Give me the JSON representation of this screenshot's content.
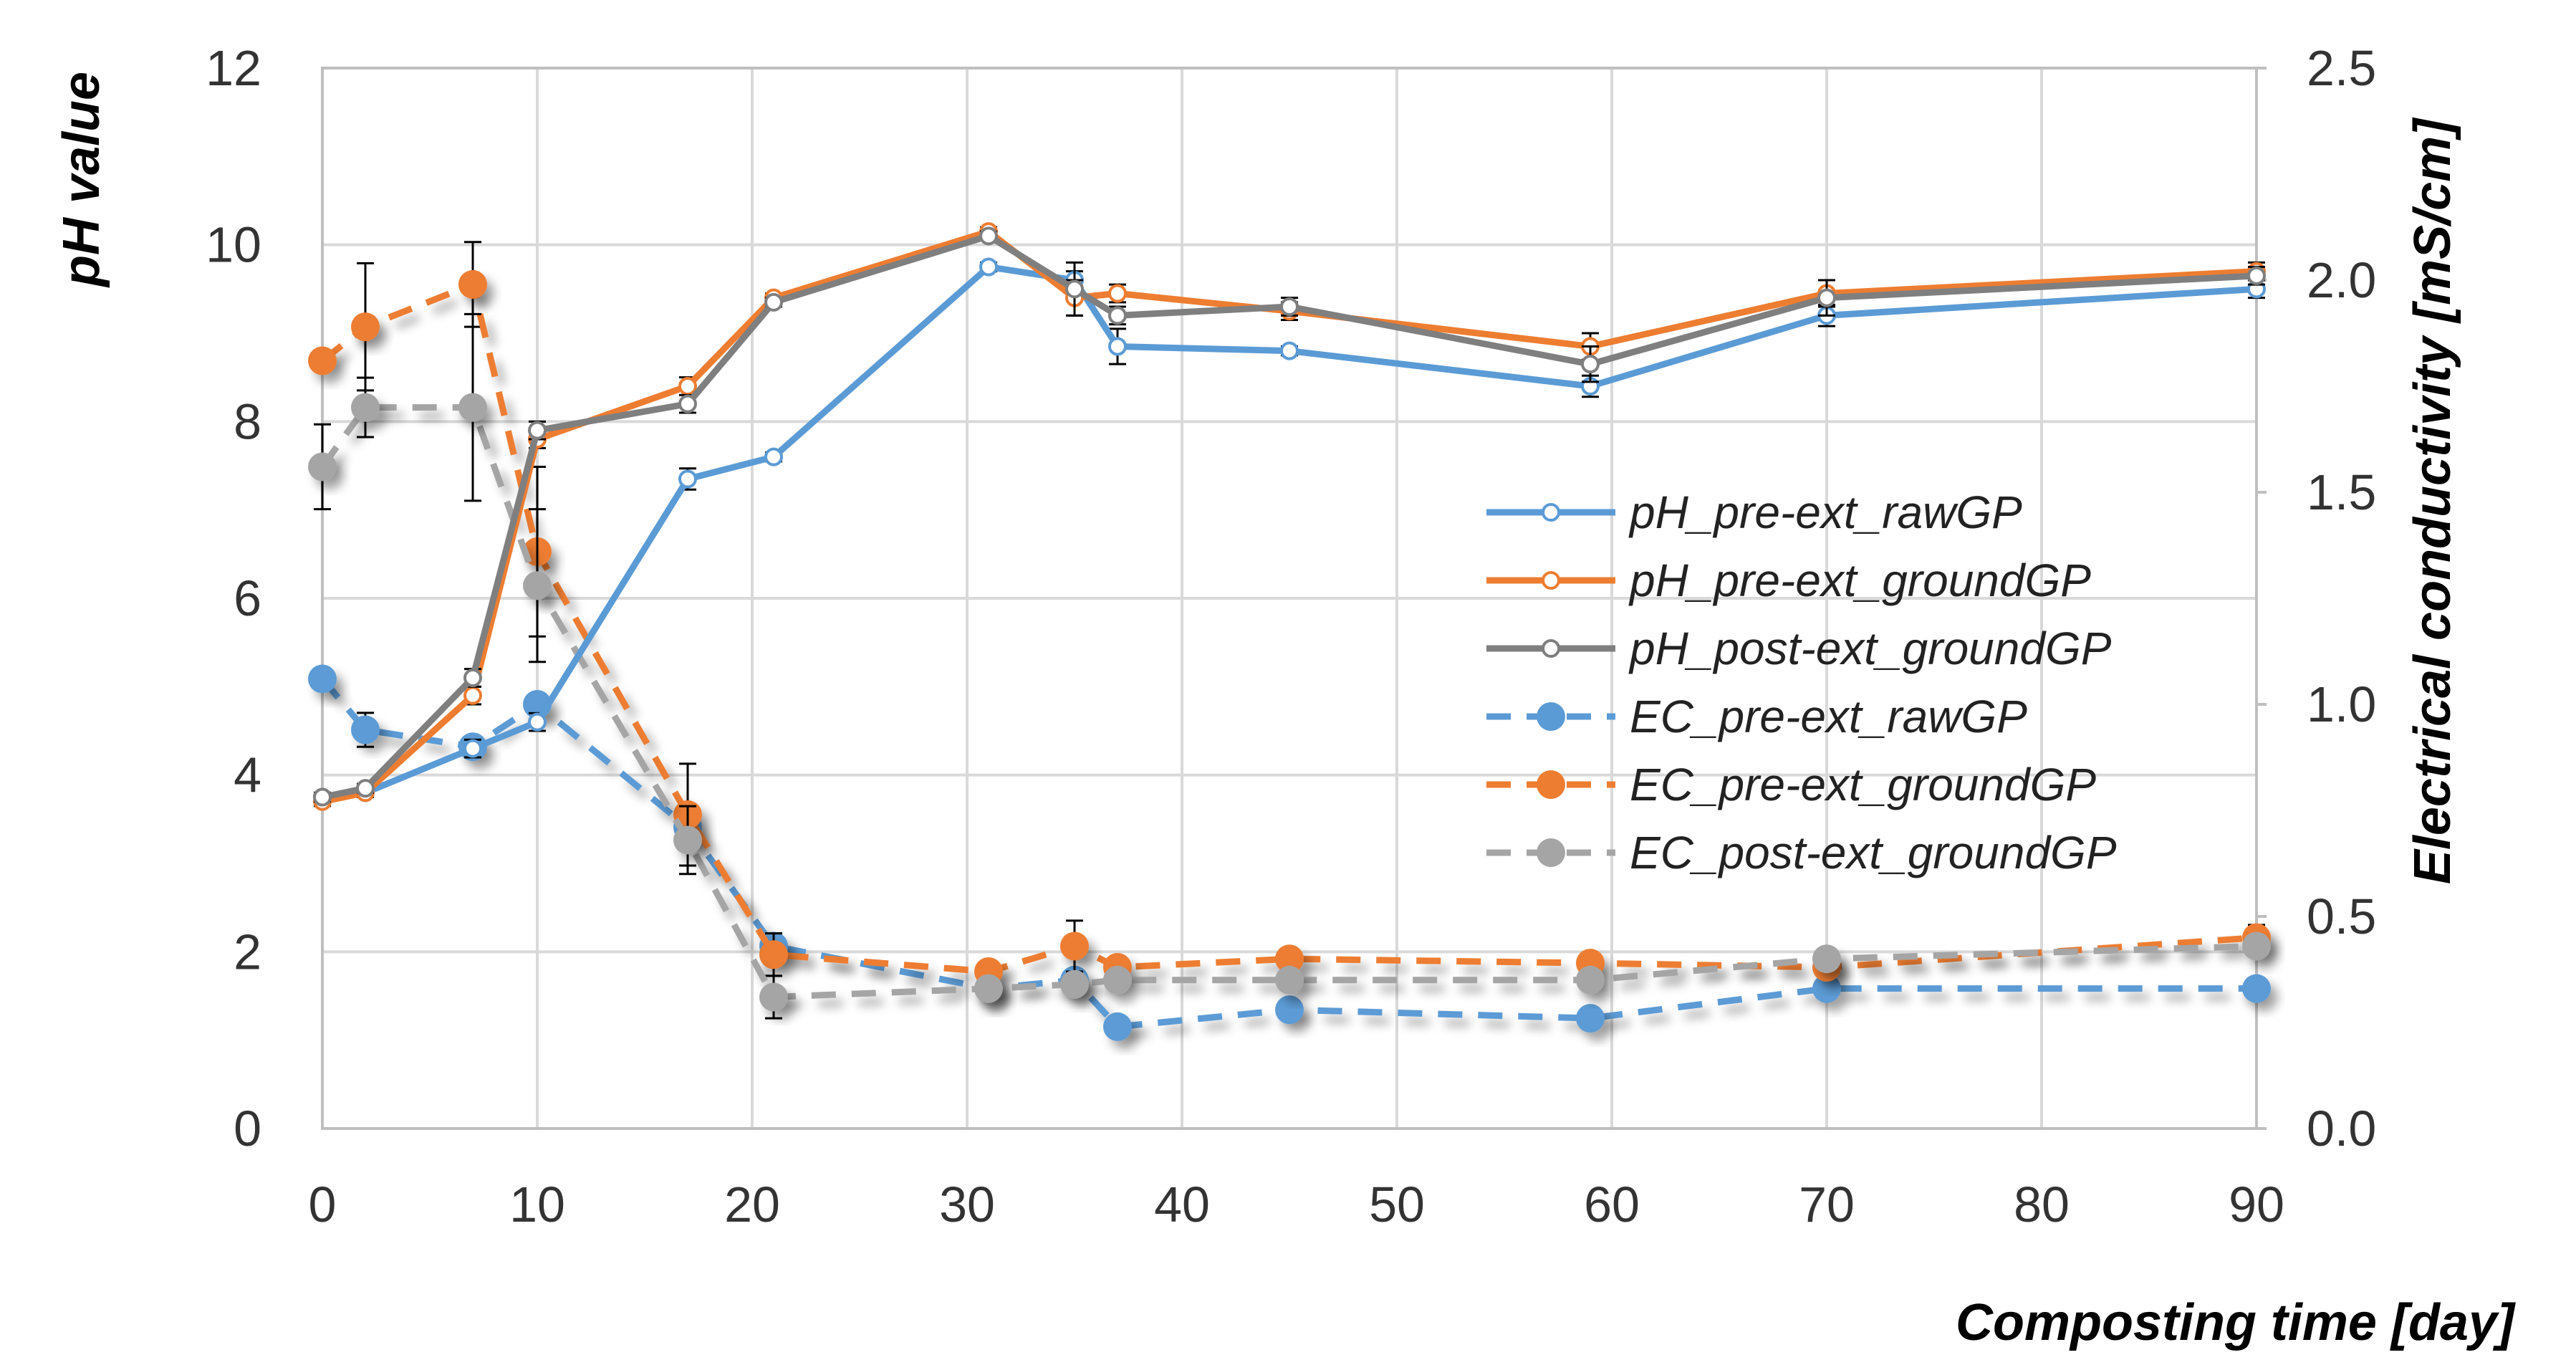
{
  "chart_data": {
    "type": "line",
    "title": "",
    "xlabel": "Composting time [day]",
    "ylabel_left": "pH value",
    "ylabel_right": "Electrical conductivity [mS/cm]",
    "xlim": [
      0,
      90
    ],
    "ylim_left": [
      0,
      12
    ],
    "ylim_right": [
      0,
      2.5
    ],
    "x_ticks": [
      "0",
      "10",
      "20",
      "30",
      "40",
      "50",
      "60",
      "70",
      "80",
      "90"
    ],
    "y_left_ticks": [
      "0",
      "2",
      "4",
      "6",
      "8",
      "10",
      "12"
    ],
    "y_right_ticks": [
      "0.0",
      "0.5",
      "1.0",
      "1.5",
      "2.0",
      "2.5"
    ],
    "grid": true,
    "legend_position": "right-center",
    "series": [
      {
        "name": "pH_pre-ext_rawGP",
        "axis": "left",
        "style": "solid",
        "marker": "open-circle",
        "color": "#5b9bd5",
        "x": [
          0,
          2,
          7,
          10,
          17,
          21,
          31,
          35,
          37,
          45,
          59,
          70,
          90
        ],
        "values": [
          3.75,
          3.8,
          4.3,
          4.6,
          7.35,
          7.6,
          9.75,
          9.6,
          8.85,
          8.8,
          8.4,
          9.2,
          9.5
        ],
        "errors": [
          0.05,
          0.05,
          0.1,
          0.1,
          0.12,
          0.05,
          0.05,
          0.1,
          0.2,
          0.05,
          0.12,
          0.12,
          0.1
        ]
      },
      {
        "name": "pH_pre-ext_groundGP",
        "axis": "left",
        "style": "solid",
        "marker": "open-circle",
        "color": "#ed7d31",
        "x": [
          0,
          2,
          7,
          10,
          17,
          21,
          31,
          35,
          37,
          45,
          59,
          70,
          90
        ],
        "values": [
          3.7,
          3.8,
          4.9,
          7.8,
          8.4,
          9.4,
          10.15,
          9.4,
          9.45,
          9.25,
          8.85,
          9.45,
          9.7
        ],
        "errors": [
          0.05,
          0.05,
          0.1,
          0.1,
          0.1,
          0.05,
          0.05,
          0.2,
          0.1,
          0.1,
          0.15,
          0.15,
          0.1
        ]
      },
      {
        "name": "pH_post-ext_groundGP",
        "axis": "left",
        "style": "solid",
        "marker": "open-circle",
        "color": "#7f7f7f",
        "x": [
          0,
          2,
          7,
          10,
          17,
          21,
          31,
          35,
          37,
          45,
          59,
          70,
          90
        ],
        "values": [
          3.75,
          3.85,
          5.1,
          7.9,
          8.2,
          9.35,
          10.1,
          9.5,
          9.2,
          9.3,
          8.65,
          9.4,
          9.65
        ],
        "errors": [
          0.05,
          0.05,
          0.1,
          0.1,
          0.1,
          0.05,
          0.05,
          0.3,
          0.1,
          0.1,
          0.2,
          0.2,
          0.1
        ]
      },
      {
        "name": "EC_pre-ext_rawGP",
        "axis": "right",
        "style": "dashed",
        "marker": "filled-circle",
        "color": "#5b9bd5",
        "x": [
          0,
          2,
          7,
          10,
          17,
          21,
          31,
          35,
          37,
          45,
          59,
          70,
          90
        ],
        "values": [
          1.06,
          0.94,
          0.9,
          1.0,
          0.71,
          0.43,
          0.33,
          0.35,
          0.24,
          0.28,
          0.26,
          0.33,
          0.33
        ],
        "errors": [
          0.01,
          0.04,
          0.01,
          0.02,
          0.02,
          0.03,
          0.01,
          0.02,
          0.01,
          0.01,
          0.02,
          0.02,
          0.02
        ]
      },
      {
        "name": "EC_pre-ext_groundGP",
        "axis": "right",
        "style": "dashed",
        "marker": "filled-circle",
        "color": "#ed7d31",
        "x": [
          0,
          2,
          7,
          10,
          17,
          21,
          31,
          35,
          37,
          45,
          59,
          70,
          90
        ],
        "values": [
          1.81,
          1.89,
          1.99,
          1.36,
          0.74,
          0.41,
          0.37,
          0.43,
          0.38,
          0.4,
          0.39,
          0.38,
          0.45
        ],
        "errors": [
          0.02,
          0.15,
          0.1,
          0.2,
          0.12,
          0.05,
          0.01,
          0.06,
          0.02,
          0.02,
          0.02,
          0.02,
          0.03
        ]
      },
      {
        "name": "EC_post-ext_groundGP",
        "axis": "right",
        "style": "dashed",
        "marker": "filled-circle",
        "color": "#a5a5a5",
        "x": [
          0,
          2,
          7,
          10,
          17,
          21,
          31,
          35,
          37,
          45,
          59,
          70,
          90
        ],
        "values": [
          1.56,
          1.7,
          1.7,
          1.28,
          0.68,
          0.31,
          0.33,
          0.34,
          0.35,
          0.35,
          0.35,
          0.4,
          0.43
        ],
        "errors": [
          0.1,
          0.07,
          0.22,
          0.18,
          0.08,
          0.05,
          0.01,
          0.02,
          0.02,
          0.01,
          0.02,
          0.02,
          0.02
        ]
      }
    ]
  }
}
